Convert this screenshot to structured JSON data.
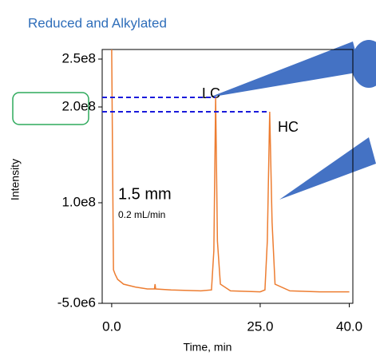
{
  "chart_data": {
    "type": "line",
    "title": "Reduced and Alkylated",
    "xlabel": "Time, min",
    "ylabel": "Intensity",
    "xlim": [
      -1.6,
      40.6
    ],
    "ylim": [
      -5000000,
      260000000
    ],
    "xticks": [
      {
        "value": 0,
        "label": "0.0"
      },
      {
        "value": 25,
        "label": "25.0"
      },
      {
        "value": 40,
        "label": "40.0"
      }
    ],
    "yticks": [
      {
        "value": 250000000,
        "label": "2.5e8"
      },
      {
        "value": 200000000,
        "label": "2.0e8"
      },
      {
        "value": 100000000,
        "label": "1.0e8"
      },
      {
        "value": -5000000,
        "label": "-5.0e6"
      }
    ],
    "x": [
      0.0,
      0.3,
      0.6,
      1,
      2,
      4,
      6,
      7.2,
      7.3,
      7.4,
      10,
      15,
      16.8,
      17.2,
      17.5,
      17.8,
      18.3,
      20,
      25,
      25.8,
      26.2,
      26.6,
      27,
      27.5,
      30,
      35,
      40
    ],
    "series": [
      {
        "name": "Intensity",
        "color": "#ed7d31",
        "values": [
          260000000,
          30000000,
          25000000,
          20000000,
          15000000,
          12000000,
          10000000,
          10000000,
          15000000,
          10000000,
          9000000,
          8000000,
          9000000,
          50000000,
          210000000,
          60000000,
          15000000,
          8000000,
          7000000,
          9000000,
          60000000,
          195000000,
          80000000,
          15000000,
          8000000,
          7000000,
          7000000
        ]
      }
    ],
    "annotations": [
      "LC",
      "HC",
      "1.5 mm",
      "0.2 mL/min"
    ],
    "grid": false
  }
}
